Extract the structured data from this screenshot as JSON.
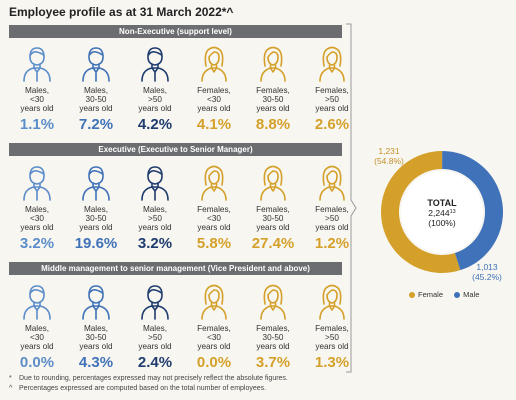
{
  "title": "Employee profile as at 31 March 2022*^",
  "groups": [
    {
      "header": "Non-Executive (support level)",
      "cells": [
        {
          "label": "Males,\n<30\nyears old",
          "value": "1.1%",
          "gender": "male",
          "shade": "light"
        },
        {
          "label": "Males,\n30-50\nyears old",
          "value": "7.2%",
          "gender": "male",
          "shade": "mid"
        },
        {
          "label": "Males,\n>50\nyears old",
          "value": "4.2%",
          "gender": "male",
          "shade": "dark"
        },
        {
          "label": "Females,\n<30\nyears old",
          "value": "4.1%",
          "gender": "female",
          "shade": "mid"
        },
        {
          "label": "Females,\n30-50\nyears old",
          "value": "8.8%",
          "gender": "female",
          "shade": "mid"
        },
        {
          "label": "Females,\n>50\nyears old",
          "value": "2.6%",
          "gender": "female",
          "shade": "mid"
        }
      ]
    },
    {
      "header": "Executive (Executive to Senior Manager)",
      "cells": [
        {
          "label": "Males,\n<30\nyears old",
          "value": "3.2%",
          "gender": "male",
          "shade": "light"
        },
        {
          "label": "Males,\n30-50\nyears old",
          "value": "19.6%",
          "gender": "male",
          "shade": "mid"
        },
        {
          "label": "Males,\n>50\nyears old",
          "value": "3.2%",
          "gender": "male",
          "shade": "dark"
        },
        {
          "label": "Females,\n<30\nyears old",
          "value": "5.8%",
          "gender": "female",
          "shade": "mid"
        },
        {
          "label": "Females,\n30-50\nyears old",
          "value": "27.4%",
          "gender": "female",
          "shade": "mid"
        },
        {
          "label": "Females,\n>50\nyears old",
          "value": "1.2%",
          "gender": "female",
          "shade": "mid"
        }
      ]
    },
    {
      "header": "Middle management to senior management (Vice President and above)",
      "cells": [
        {
          "label": "Males,\n<30\nyears old",
          "value": "0.0%",
          "gender": "male",
          "shade": "light"
        },
        {
          "label": "Males,\n30-50\nyears old",
          "value": "4.3%",
          "gender": "male",
          "shade": "mid"
        },
        {
          "label": "Males,\n>50\nyears old",
          "value": "2.4%",
          "gender": "male",
          "shade": "dark"
        },
        {
          "label": "Females,\n<30\nyears old",
          "value": "0.0%",
          "gender": "female",
          "shade": "mid"
        },
        {
          "label": "Females,\n30-50\nyears old",
          "value": "3.7%",
          "gender": "female",
          "shade": "mid"
        },
        {
          "label": "Females,\n>50\nyears old",
          "value": "1.3%",
          "gender": "female",
          "shade": "mid"
        }
      ]
    }
  ],
  "colors": {
    "male_light": "#5b8dc9",
    "male_mid": "#3f72b8",
    "male_dark": "#1f3c6e",
    "female": "#d4a02a",
    "band": "#6b6d70"
  },
  "chart_data": {
    "type": "pie",
    "categories": [
      "Female",
      "Male"
    ],
    "values": [
      1231,
      1013
    ],
    "value_labels": [
      "1,231",
      "1,013"
    ],
    "percent_labels": [
      "(54.8%)",
      "(45.2%)"
    ],
    "colors": [
      "#d4a02a",
      "#3f72b8"
    ],
    "center_title": "TOTAL",
    "center_value": "2,244",
    "center_superscript": "13",
    "center_percent": "(100%)",
    "legend": [
      "Female",
      "Male"
    ],
    "legend_position": "bottom"
  },
  "footnotes": [
    {
      "symbol": "*",
      "text": "Due to rounding, percentages expressed may not precisely reflect the absolute figures."
    },
    {
      "symbol": "^",
      "text": "Percentages expressed are computed based on the total number of employees."
    }
  ]
}
